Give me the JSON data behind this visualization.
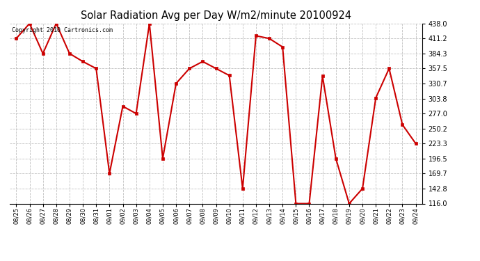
{
  "title": "Solar Radiation Avg per Day W/m2/minute 20100924",
  "copyright": "Copyright 2010 Cartronics.com",
  "labels": [
    "08/25",
    "08/26",
    "08/27",
    "08/28",
    "08/29",
    "08/30",
    "08/31",
    "09/01",
    "09/02",
    "09/03",
    "09/04",
    "09/05",
    "09/06",
    "09/07",
    "09/08",
    "09/09",
    "09/10",
    "09/11",
    "09/12",
    "09/13",
    "09/14",
    "09/15",
    "09/16",
    "09/17",
    "09/18",
    "09/19",
    "09/20",
    "09/21",
    "09/22",
    "09/23",
    "09/24"
  ],
  "values": [
    411.2,
    438.0,
    384.3,
    438.0,
    384.3,
    370.0,
    357.5,
    169.7,
    290.0,
    277.0,
    438.0,
    196.5,
    330.7,
    357.5,
    370.0,
    357.5,
    345.0,
    142.8,
    416.0,
    411.2,
    396.0,
    116.0,
    116.0,
    344.0,
    196.5,
    116.0,
    142.8,
    305.0,
    357.5,
    257.0,
    223.3
  ],
  "line_color": "#cc0000",
  "marker_color": "#cc0000",
  "bg_color": "#ffffff",
  "grid_color": "#c0c0c0",
  "title_color": "#000000",
  "yticks": [
    116.0,
    142.8,
    169.7,
    196.5,
    223.3,
    250.2,
    277.0,
    303.8,
    330.7,
    357.5,
    384.3,
    411.2,
    438.0
  ],
  "ymin": 116.0,
  "ymax": 438.0,
  "title_fontsize": 10.5,
  "copyright_fontsize": 6,
  "xtick_fontsize": 6,
  "ytick_fontsize": 7
}
